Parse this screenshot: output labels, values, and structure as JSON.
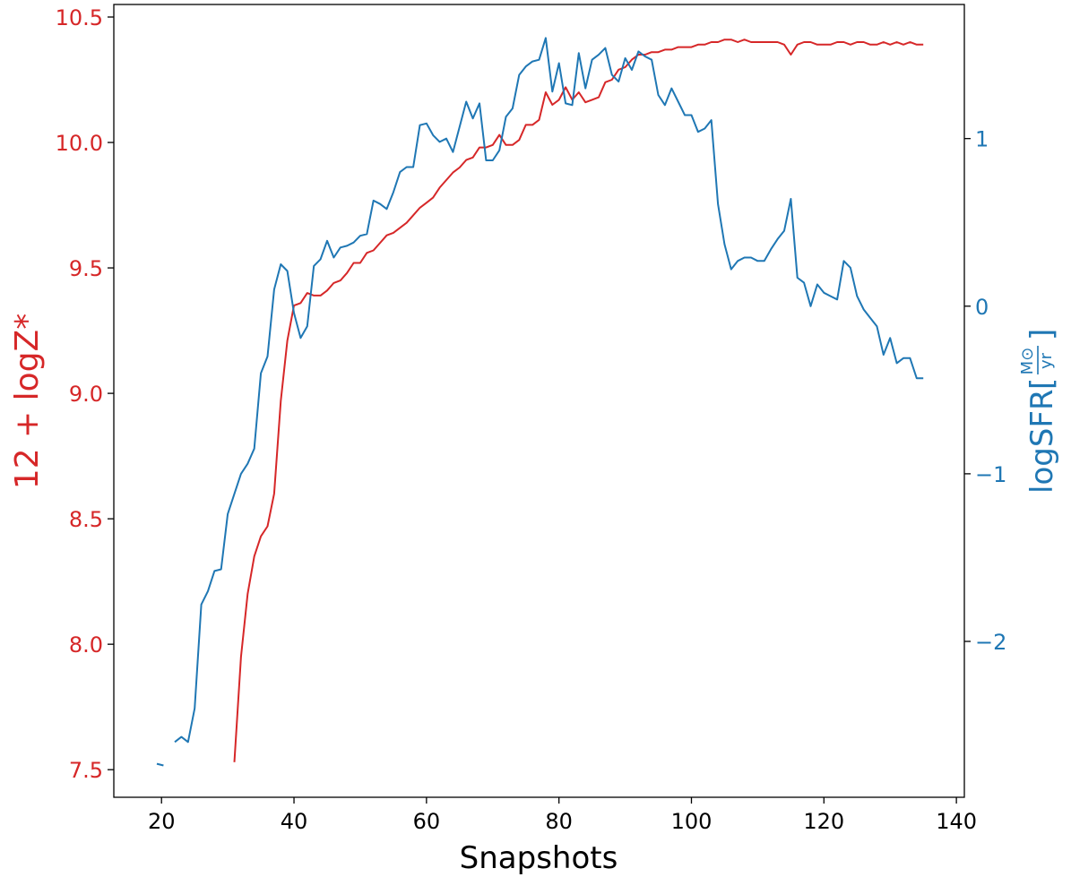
{
  "chart_data": {
    "type": "line",
    "xlabel": "Snapshots",
    "ylabel_left": "12 + logZ*",
    "ylabel_right": "logSFR [M⊙/yr]",
    "ylabel_right_main": "logSFR",
    "ylabel_right_unit_num": "M⊙",
    "ylabel_right_unit_den": "yr",
    "ylabel_right_open": "[",
    "ylabel_right_close": "]",
    "grid": false,
    "xlim": [
      12.8,
      141.2
    ],
    "ylim_left": [
      7.39,
      10.55
    ],
    "ylim_right": [
      -2.93,
      1.8
    ],
    "x_ticks": [
      20,
      40,
      60,
      80,
      100,
      120,
      140
    ],
    "x_tick_labels": [
      "20",
      "40",
      "60",
      "80",
      "100",
      "120",
      "140"
    ],
    "y_left_ticks": [
      7.5,
      8.0,
      8.5,
      9.0,
      9.5,
      10.0,
      10.5
    ],
    "y_left_tick_labels": [
      "7.5",
      "8.0",
      "8.5",
      "9.0",
      "9.5",
      "10.0",
      "10.5"
    ],
    "y_right_ticks": [
      -2,
      -1,
      0,
      1
    ],
    "y_right_tick_labels": [
      "−2",
      "−1",
      "0",
      "1"
    ],
    "colors": {
      "metallicity": "#d62728",
      "sfr": "#1f77b4",
      "axis": "#000000"
    },
    "series": [
      {
        "axis": "left",
        "color": "#d62728",
        "x": [
          31,
          32,
          33,
          34,
          35,
          36,
          37,
          38,
          39,
          40,
          41,
          42,
          43,
          44,
          45,
          46,
          47,
          48,
          49,
          50,
          51,
          52,
          53,
          54,
          55,
          56,
          57,
          58,
          59,
          60,
          61,
          62,
          63,
          64,
          65,
          66,
          67,
          68,
          69,
          70,
          71,
          72,
          73,
          74,
          75,
          76,
          77,
          78,
          79,
          80,
          81,
          82,
          83,
          84,
          85,
          86,
          87,
          88,
          89,
          90,
          91,
          92,
          93,
          94,
          95,
          96,
          97,
          98,
          99,
          100,
          101,
          102,
          103,
          104,
          105,
          106,
          107,
          108,
          109,
          110,
          111,
          112,
          113,
          114,
          115,
          116,
          117,
          118,
          119,
          120,
          121,
          122,
          123,
          124,
          125,
          126,
          127,
          128,
          129,
          130,
          131,
          132,
          133,
          134,
          135
        ],
        "y": [
          7.53,
          7.95,
          8.2,
          8.35,
          8.43,
          8.47,
          8.6,
          8.97,
          9.21,
          9.35,
          9.36,
          9.4,
          9.39,
          9.39,
          9.41,
          9.44,
          9.45,
          9.48,
          9.52,
          9.52,
          9.56,
          9.57,
          9.6,
          9.63,
          9.64,
          9.66,
          9.68,
          9.71,
          9.74,
          9.76,
          9.78,
          9.82,
          9.85,
          9.88,
          9.9,
          9.93,
          9.94,
          9.98,
          9.98,
          9.99,
          10.03,
          9.99,
          9.99,
          10.01,
          10.07,
          10.07,
          10.09,
          10.2,
          10.15,
          10.17,
          10.22,
          10.17,
          10.2,
          10.16,
          10.17,
          10.18,
          10.24,
          10.25,
          10.29,
          10.3,
          10.33,
          10.35,
          10.35,
          10.36,
          10.36,
          10.37,
          10.37,
          10.38,
          10.38,
          10.38,
          10.39,
          10.39,
          10.4,
          10.4,
          10.41,
          10.41,
          10.4,
          10.41,
          10.4,
          10.4,
          10.4,
          10.4,
          10.4,
          10.39,
          10.35,
          10.39,
          10.4,
          10.4,
          10.39,
          10.39,
          10.39,
          10.4,
          10.4,
          10.39,
          10.4,
          10.4,
          10.39,
          10.39,
          10.4,
          10.39,
          10.4,
          10.39,
          10.4,
          10.39,
          10.39
        ]
      },
      {
        "axis": "right",
        "color": "#1f77b4",
        "x": [
          22,
          23,
          24,
          25,
          26,
          27,
          28,
          29,
          30,
          31,
          32,
          33,
          34,
          35,
          36,
          37,
          38,
          39,
          40,
          41,
          42,
          43,
          44,
          45,
          46,
          47,
          48,
          49,
          50,
          51,
          52,
          53,
          54,
          55,
          56,
          57,
          58,
          59,
          60,
          61,
          62,
          63,
          64,
          65,
          66,
          67,
          68,
          69,
          70,
          71,
          72,
          73,
          74,
          75,
          76,
          77,
          78,
          79,
          80,
          81,
          82,
          83,
          84,
          85,
          86,
          87,
          88,
          89,
          90,
          91,
          92,
          93,
          94,
          95,
          96,
          97,
          98,
          99,
          100,
          101,
          102,
          103,
          104,
          105,
          106,
          107,
          108,
          109,
          110,
          111,
          112,
          113,
          114,
          115,
          116,
          117,
          118,
          119,
          120,
          121,
          122,
          123,
          124,
          125,
          126,
          127,
          128,
          129,
          130,
          131,
          132,
          133,
          134,
          135
        ],
        "y": [
          -2.6,
          -2.57,
          -2.6,
          -2.4,
          -1.78,
          -1.7,
          -1.58,
          -1.57,
          -1.24,
          -1.12,
          -1.0,
          -0.94,
          -0.85,
          -0.4,
          -0.3,
          0.1,
          0.25,
          0.21,
          -0.04,
          -0.19,
          -0.12,
          0.24,
          0.28,
          0.39,
          0.29,
          0.35,
          0.36,
          0.38,
          0.42,
          0.43,
          0.63,
          0.61,
          0.58,
          0.68,
          0.8,
          0.83,
          0.83,
          1.08,
          1.09,
          1.02,
          0.98,
          1.0,
          0.92,
          1.07,
          1.22,
          1.12,
          1.21,
          0.87,
          0.87,
          0.93,
          1.13,
          1.18,
          1.38,
          1.43,
          1.46,
          1.47,
          1.6,
          1.28,
          1.45,
          1.21,
          1.2,
          1.51,
          1.3,
          1.47,
          1.5,
          1.54,
          1.38,
          1.34,
          1.48,
          1.41,
          1.52,
          1.49,
          1.47,
          1.26,
          1.2,
          1.3,
          1.22,
          1.14,
          1.14,
          1.04,
          1.06,
          1.11,
          0.61,
          0.37,
          0.22,
          0.27,
          0.29,
          0.29,
          0.27,
          0.27,
          0.34,
          0.4,
          0.45,
          0.64,
          0.17,
          0.14,
          0.0,
          0.13,
          0.08,
          0.06,
          0.04,
          0.27,
          0.23,
          0.06,
          -0.02,
          -0.07,
          -0.12,
          -0.29,
          -0.19,
          -0.34,
          -0.31,
          -0.31,
          -0.43,
          -0.43
        ]
      },
      {
        "axis": "right",
        "color": "#1f77b4",
        "x": [
          19.3,
          20.3
        ],
        "y": [
          -2.73,
          -2.74
        ]
      }
    ]
  }
}
